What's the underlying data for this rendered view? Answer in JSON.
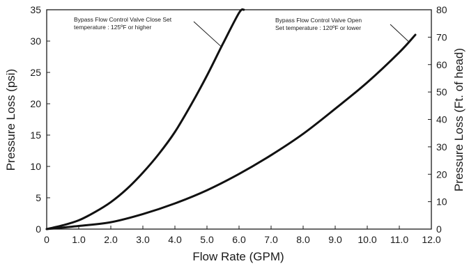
{
  "chart_data": {
    "type": "line",
    "xlabel": "Flow Rate (GPM)",
    "ylabel": "Pressure Loss (psi)",
    "y2label": "Pressure Loss (Ft. of head)",
    "xlim": [
      0,
      12
    ],
    "ylim": [
      0,
      35
    ],
    "y2lim": [
      0,
      80
    ],
    "x_ticks": [
      "0",
      "1.0",
      "2.0",
      "3.0",
      "4.0",
      "5.0",
      "6.0",
      "7.0",
      "8.0",
      "9.0",
      "10.0",
      "11.0",
      "12.0"
    ],
    "y_ticks": [
      "0",
      "5",
      "10",
      "15",
      "20",
      "25",
      "30",
      "35"
    ],
    "y2_ticks": [
      "0",
      "10",
      "20",
      "30",
      "40",
      "50",
      "60",
      "70",
      "80"
    ],
    "grid": false,
    "legend": "none",
    "series": [
      {
        "x": [
          0,
          0.5,
          1.0,
          1.5,
          2.0,
          2.5,
          3.0,
          3.5,
          4.0,
          4.5,
          5.0,
          5.5,
          6.0,
          6.15
        ],
        "values": [
          0,
          0.6,
          1.4,
          2.7,
          4.3,
          6.4,
          9.0,
          12.0,
          15.5,
          19.8,
          24.5,
          29.6,
          34.5,
          35
        ]
      },
      {
        "x": [
          0,
          1.0,
          2.0,
          3.0,
          4.0,
          5.0,
          6.0,
          7.0,
          8.0,
          9.0,
          10.0,
          11.0,
          11.5
        ],
        "values": [
          0,
          0.5,
          1.1,
          2.4,
          4.1,
          6.2,
          8.8,
          11.8,
          15.2,
          19.2,
          23.4,
          28.2,
          31.0
        ]
      }
    ],
    "annotations": [
      {
        "lines": [
          "Bypass Flow Control Valve Close Set",
          "temperature : 125ºF or higher"
        ],
        "series_index": 0,
        "point_x": 5.45
      },
      {
        "lines": [
          "Bypass Flow Control Valve Open",
          "Set temperature : 120ºF or lower"
        ],
        "series_index": 1,
        "point_x": 11.3
      }
    ]
  }
}
